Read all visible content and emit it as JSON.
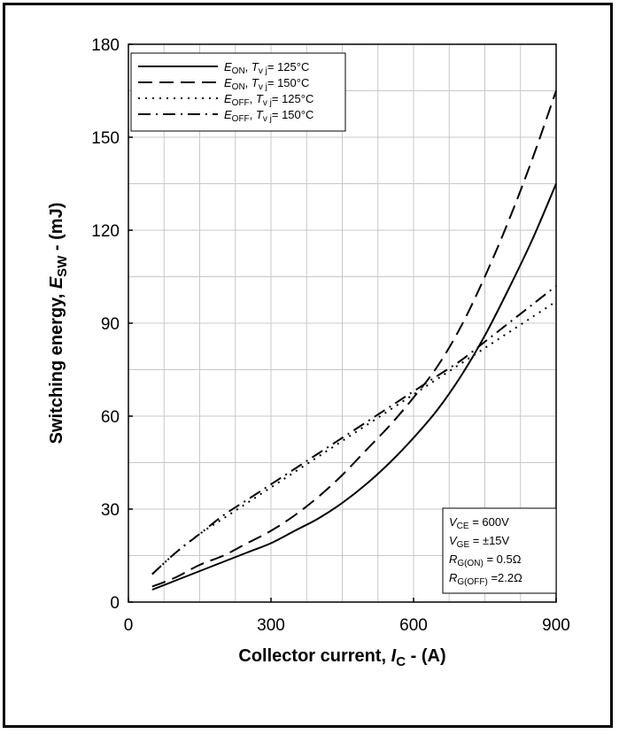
{
  "chart_data": {
    "type": "line",
    "xlabel": {
      "main": "Collector current, ",
      "var": "I",
      "sub": "C",
      "unit": " - (A)"
    },
    "ylabel": {
      "main": "Switching energy, ",
      "var": "E",
      "sub": "SW",
      "unit": " - (mJ)"
    },
    "xlim": [
      0,
      900
    ],
    "ylim": [
      0,
      180
    ],
    "xticks": [
      "0",
      "300",
      "600",
      "900"
    ],
    "yticks": [
      "0",
      "30",
      "60",
      "90",
      "120",
      "150",
      "180"
    ],
    "grid": true,
    "legend_position": "top-left",
    "conditions_position": "bottom-right",
    "series": [
      {
        "var": "E",
        "sub": "ON",
        "tvj": "= 125°C",
        "style": "solid",
        "x": [
          50,
          100,
          150,
          200,
          250,
          300,
          350,
          400,
          450,
          500,
          550,
          600,
          650,
          700,
          750,
          800,
          850,
          900
        ],
        "y": [
          4,
          7,
          10,
          13,
          16,
          19,
          23,
          27,
          32,
          38,
          45,
          53,
          62,
          73,
          86,
          101,
          117,
          135
        ]
      },
      {
        "var": "E",
        "sub": "ON",
        "tvj": "= 150°C",
        "style": "dashed",
        "x": [
          50,
          100,
          150,
          200,
          250,
          300,
          350,
          400,
          450,
          500,
          550,
          600,
          650,
          700,
          750,
          800,
          850,
          900
        ],
        "y": [
          5,
          8,
          12,
          15,
          19,
          23,
          28,
          34,
          41,
          49,
          57,
          66,
          76,
          89,
          105,
          123,
          143,
          165
        ]
      },
      {
        "var": "E",
        "sub": "OFF",
        "tvj": "= 125°C",
        "style": "dotted",
        "x": [
          50,
          100,
          150,
          200,
          250,
          300,
          350,
          400,
          450,
          500,
          550,
          600,
          650,
          700,
          750,
          800,
          850,
          900
        ],
        "y": [
          9,
          16,
          22,
          27,
          32,
          37,
          42,
          47,
          52,
          57,
          62,
          67,
          72,
          77,
          82,
          87,
          92,
          97
        ]
      },
      {
        "var": "E",
        "sub": "OFF",
        "tvj": "= 150°C",
        "style": "dashdot",
        "x": [
          50,
          100,
          150,
          200,
          250,
          300,
          350,
          400,
          450,
          500,
          550,
          600,
          650,
          700,
          750,
          800,
          850,
          900
        ],
        "y": [
          9,
          16,
          22,
          28,
          33,
          38,
          43,
          48,
          53,
          58,
          63,
          68,
          73,
          78,
          84,
          90,
          96,
          102
        ]
      }
    ],
    "tvj_label": {
      "var": "T",
      "sub": "v j"
    },
    "conditions": [
      {
        "var": "V",
        "sub": "CE",
        "value": "= 600V"
      },
      {
        "var": "V",
        "sub": "GE",
        "value": "= ±15V"
      },
      {
        "var": "R",
        "sub": "G(ON)",
        "value": "= 0.5Ω"
      },
      {
        "var": "R",
        "sub": "G(OFF)",
        "value": "=2.2Ω"
      }
    ]
  }
}
